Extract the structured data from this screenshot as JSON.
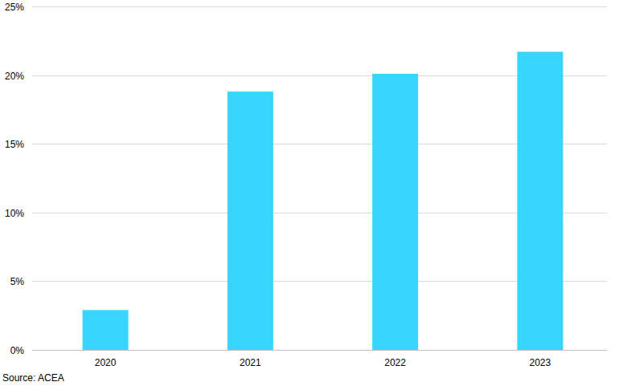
{
  "chart_data": {
    "type": "bar",
    "categories": [
      "2020",
      "2021",
      "2022",
      "2023"
    ],
    "values": [
      2.9,
      18.8,
      20.1,
      21.7
    ],
    "color": "#38d6fe",
    "ylim": [
      0,
      25
    ],
    "yticks": [
      {
        "value": 0,
        "label": "0%"
      },
      {
        "value": 5,
        "label": "5%"
      },
      {
        "value": 10,
        "label": "10%"
      },
      {
        "value": 15,
        "label": "15%"
      },
      {
        "value": 20,
        "label": "20%"
      },
      {
        "value": 25,
        "label": "25%"
      }
    ],
    "grid": true,
    "annotations": [
      "Source: ACEA"
    ]
  }
}
